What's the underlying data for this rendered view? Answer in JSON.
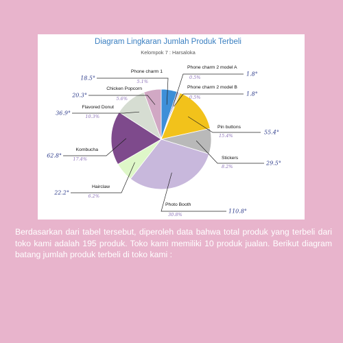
{
  "chart_data": {
    "type": "pie",
    "title": "Diagram Lingkaran Jumlah Produk Terbeli",
    "subtitle": "Kelompok 7 : Harsaloka",
    "slices": [
      {
        "label": "Phone charm 1",
        "value": 10,
        "percent_label": "5.1%",
        "degree_label": "18.5°",
        "color": "#3d8fd8"
      },
      {
        "label": "Phone charm 2 model A",
        "value": 1,
        "percent_label": "0.5%",
        "degree_label": "1.8°",
        "color": "#7a72b8"
      },
      {
        "label": "Phone charm 2 model B",
        "value": 1,
        "percent_label": "0.5%",
        "degree_label": "1.8°",
        "color": "#d9d9d9"
      },
      {
        "label": "Pin buttons",
        "value": 30,
        "percent_label": "15.4%",
        "degree_label": "55.4°",
        "color": "#f2c21b"
      },
      {
        "label": "Stickers",
        "value": 16,
        "percent_label": "8.2%",
        "degree_label": "29.5°",
        "color": "#b9b9b9"
      },
      {
        "label": "Photo Booth",
        "value": 60,
        "percent_label": "30.8%",
        "degree_label": "110.8°",
        "color": "#c8b8dc"
      },
      {
        "label": "Hairclaw",
        "value": 12,
        "percent_label": "6.2%",
        "degree_label": "22.2°",
        "color": "#def7c8"
      },
      {
        "label": "Kombucha",
        "value": 34,
        "percent_label": "17.4%",
        "degree_label": "62.8°",
        "color": "#7e4a8c"
      },
      {
        "label": "Flavored Donut",
        "value": 20,
        "percent_label": "10.3%",
        "degree_label": "36.9°",
        "color": "#d6ddd2"
      },
      {
        "label": "Chicken Popcorn",
        "value": 11,
        "percent_label": "5.6%",
        "degree_label": "20.3°",
        "color": "#d1a8c4"
      }
    ]
  },
  "caption": "Berdasarkan dari tabel tersebut, diperoleh data bahwa total produk yang terbeli dari toko kami adalah 195 produk. Toko kami memiliki 10 produk jualan. Berikut diagram batang jumlah produk terbeli di toko kami :"
}
